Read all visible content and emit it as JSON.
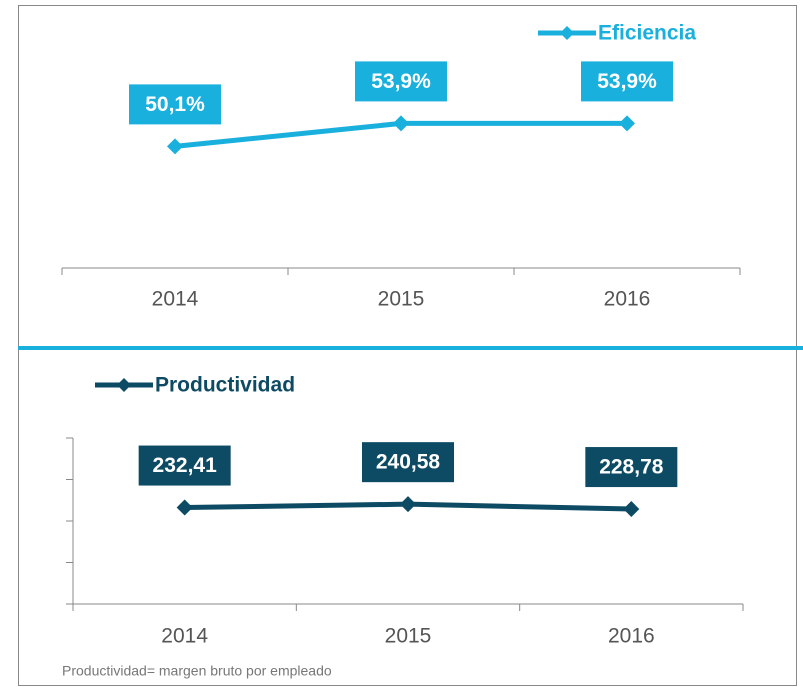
{
  "chart_data": [
    {
      "type": "line",
      "categories": [
        "2014",
        "2015",
        "2016"
      ],
      "series": [
        {
          "name": "Eficiencia",
          "color": "#1ab0de",
          "values": [
            50.1,
            53.9,
            53.9
          ],
          "value_labels": [
            "50,1%",
            "53,9%",
            "53,9%"
          ]
        }
      ],
      "ylim": [
        30,
        70
      ],
      "legend": "top-right"
    },
    {
      "type": "line",
      "categories": [
        "2014",
        "2015",
        "2016"
      ],
      "series": [
        {
          "name": "Productividad",
          "color": "#0d4a63",
          "values": [
            232.41,
            240.58,
            228.78
          ],
          "value_labels": [
            "232,41",
            "240,58",
            "228,78"
          ]
        }
      ],
      "ylim": [
        0,
        400
      ],
      "yticks": [
        0,
        100,
        200,
        300,
        400
      ],
      "legend": "top-left"
    }
  ],
  "footnote": "Productividad= margen bruto por empleado"
}
